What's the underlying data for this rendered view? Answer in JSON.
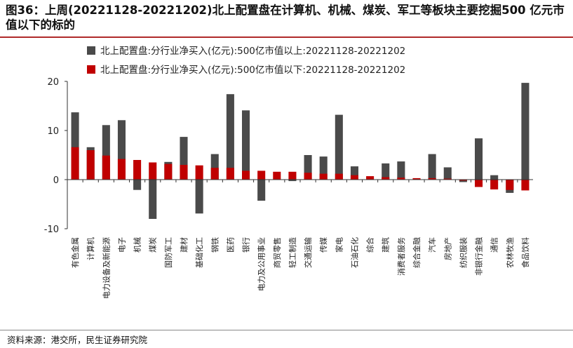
{
  "title": "图36：上周(20221128-20221202)北上配置盘在计算机、机械、煤炭、军工等板块主要挖掘500 亿元市值以下的标的",
  "source": "资料来源：港交所，民生证券研究院",
  "chart_data": {
    "type": "bar",
    "stacked": false,
    "overlapping": true,
    "categories": [
      "有色金属",
      "计算机",
      "电力设备及新能源",
      "电子",
      "机械",
      "煤炭",
      "国防军工",
      "建材",
      "基础化工",
      "钢铁",
      "医药",
      "银行",
      "电力及公用事业",
      "商贸零售",
      "轻工制造",
      "交通运输",
      "传媒",
      "家电",
      "石油石化",
      "综合",
      "建筑",
      "消费者服务",
      "综合金融",
      "汽车",
      "房地产",
      "纺织服装",
      "非银行金融",
      "通信",
      "农林牧渔",
      "食品饮料"
    ],
    "series": [
      {
        "name": "北上配置盘:分行业净买入(亿元):500亿市值以上:20221128-20221202",
        "color": "#4a4a4a",
        "values": [
          13.7,
          6.6,
          11.1,
          12.1,
          -2.1,
          -8.0,
          3.6,
          8.7,
          -6.9,
          5.2,
          17.4,
          14.1,
          -4.3,
          0,
          -0.3,
          5.0,
          4.7,
          13.2,
          2.7,
          0,
          3.3,
          3.7,
          0,
          5.2,
          2.5,
          -0.5,
          8.4,
          0.9,
          -2.7,
          19.7
        ]
      },
      {
        "name": "北上配置盘:分行业净买入(亿元):500亿市值以下:20221128-20221202",
        "color": "#c00000",
        "values": [
          6.6,
          6.0,
          4.9,
          4.2,
          4.0,
          3.5,
          3.2,
          3.0,
          2.9,
          2.4,
          2.4,
          1.8,
          1.8,
          1.6,
          1.6,
          1.4,
          1.2,
          1.2,
          0.9,
          0.7,
          0.5,
          0.4,
          0.3,
          0.3,
          0.2,
          -0.2,
          -1.5,
          -2.0,
          -2.1,
          -2.2
        ]
      }
    ],
    "ylim": [
      -10,
      20
    ],
    "yticks": [
      -10,
      0,
      10,
      20
    ],
    "grid": false,
    "legend_position": "top"
  }
}
